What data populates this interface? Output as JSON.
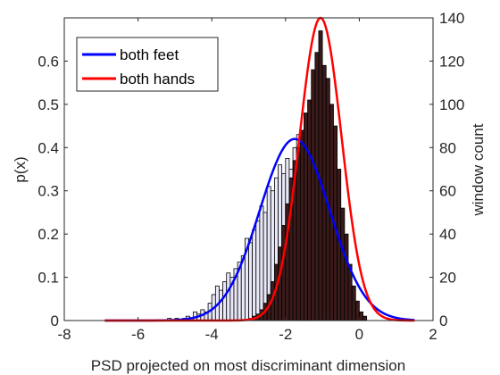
{
  "chart_data": {
    "type": "bar",
    "xlabel": "PSD projected on most discriminant dimension",
    "ylabel": "p(x)",
    "y2label": "window count",
    "xlim": [
      -8,
      2
    ],
    "ylim": [
      0,
      0.7
    ],
    "y2lim": [
      0,
      140
    ],
    "xticks": [
      "-8",
      "-6",
      "-4",
      "-2",
      "0",
      "2"
    ],
    "yticks": [
      "0",
      "0.1",
      "0.2",
      "0.3",
      "0.4",
      "0.5",
      "0.6"
    ],
    "y2ticks": [
      "0",
      "20",
      "40",
      "60",
      "80",
      "100",
      "120",
      "140"
    ],
    "grid": false,
    "legend_position": "top-left",
    "histograms": [
      {
        "group": "both feet",
        "fill": "#e8e8f8",
        "bins": [
          [
            -5.2,
            -5.1,
            1
          ],
          [
            -5.1,
            -5.0,
            0
          ],
          [
            -5.0,
            -4.9,
            1
          ],
          [
            -4.9,
            -4.8,
            0
          ],
          [
            -4.8,
            -4.7,
            1
          ],
          [
            -4.7,
            -4.6,
            2
          ],
          [
            -4.6,
            -4.5,
            1
          ],
          [
            -4.5,
            -4.4,
            4
          ],
          [
            -4.4,
            -4.3,
            3
          ],
          [
            -4.3,
            -4.2,
            5
          ],
          [
            -4.2,
            -4.1,
            4
          ],
          [
            -4.1,
            -4.0,
            8
          ],
          [
            -4.0,
            -3.9,
            12
          ],
          [
            -3.9,
            -3.8,
            16
          ],
          [
            -3.8,
            -3.7,
            14
          ],
          [
            -3.7,
            -3.6,
            18
          ],
          [
            -3.6,
            -3.5,
            22
          ],
          [
            -3.5,
            -3.4,
            20
          ],
          [
            -3.4,
            -3.3,
            24
          ],
          [
            -3.3,
            -3.2,
            27
          ],
          [
            -3.2,
            -3.1,
            30
          ],
          [
            -3.1,
            -3.0,
            38
          ],
          [
            -3.0,
            -2.9,
            36
          ],
          [
            -2.9,
            -2.8,
            42
          ],
          [
            -2.8,
            -2.7,
            46
          ],
          [
            -2.7,
            -2.6,
            53
          ],
          [
            -2.6,
            -2.5,
            50
          ],
          [
            -2.5,
            -2.4,
            62
          ],
          [
            -2.4,
            -2.3,
            60
          ],
          [
            -2.3,
            -2.2,
            66
          ],
          [
            -2.2,
            -2.1,
            72
          ],
          [
            -2.1,
            -2.0,
            68
          ],
          [
            -2.0,
            -1.9,
            75
          ],
          [
            -1.9,
            -1.8,
            70
          ],
          [
            -1.8,
            -1.7,
            80
          ],
          [
            -1.7,
            -1.6,
            86
          ],
          [
            -1.6,
            -1.5,
            82
          ],
          [
            -1.5,
            -1.4,
            78
          ],
          [
            -1.4,
            -1.3,
            84
          ],
          [
            -1.3,
            -1.2,
            70
          ],
          [
            -1.2,
            -1.1,
            74
          ],
          [
            -1.1,
            -1.0,
            58
          ],
          [
            -1.0,
            -0.9,
            62
          ],
          [
            -0.9,
            -0.8,
            44
          ],
          [
            -0.8,
            -0.7,
            48
          ],
          [
            -0.7,
            -0.6,
            30
          ],
          [
            -0.6,
            -0.5,
            24
          ],
          [
            -0.5,
            -0.4,
            14
          ],
          [
            -0.4,
            -0.3,
            10
          ],
          [
            -0.3,
            -0.2,
            6
          ],
          [
            -0.2,
            -0.1,
            4
          ],
          [
            -0.1,
            0.0,
            2
          ]
        ]
      },
      {
        "group": "both hands",
        "fill": "#3a1a1a",
        "bins": [
          [
            -3.0,
            -2.9,
            1
          ],
          [
            -2.9,
            -2.8,
            2
          ],
          [
            -2.8,
            -2.7,
            3
          ],
          [
            -2.7,
            -2.6,
            5
          ],
          [
            -2.6,
            -2.5,
            8
          ],
          [
            -2.5,
            -2.4,
            12
          ],
          [
            -2.4,
            -2.3,
            18
          ],
          [
            -2.3,
            -2.2,
            26
          ],
          [
            -2.2,
            -2.1,
            34
          ],
          [
            -2.1,
            -2.0,
            44
          ],
          [
            -2.0,
            -1.9,
            54
          ],
          [
            -1.9,
            -1.8,
            66
          ],
          [
            -1.8,
            -1.7,
            74
          ],
          [
            -1.7,
            -1.6,
            80
          ],
          [
            -1.6,
            -1.5,
            88
          ],
          [
            -1.5,
            -1.4,
            96
          ],
          [
            -1.4,
            -1.3,
            102
          ],
          [
            -1.3,
            -1.2,
            116
          ],
          [
            -1.2,
            -1.1,
            124
          ],
          [
            -1.1,
            -1.0,
            134
          ],
          [
            -1.0,
            -0.9,
            118
          ],
          [
            -0.9,
            -0.8,
            112
          ],
          [
            -0.8,
            -0.7,
            100
          ],
          [
            -0.7,
            -0.6,
            90
          ],
          [
            -0.6,
            -0.5,
            70
          ],
          [
            -0.5,
            -0.4,
            52
          ],
          [
            -0.4,
            -0.3,
            40
          ],
          [
            -0.3,
            -0.2,
            26
          ],
          [
            -0.2,
            -0.1,
            16
          ],
          [
            -0.1,
            0.0,
            9
          ],
          [
            0.0,
            0.1,
            4
          ],
          [
            0.1,
            0.2,
            2
          ]
        ]
      }
    ],
    "series": [
      {
        "name": "both feet",
        "color": "#0000ff",
        "distribution": "normal",
        "mean": -1.75,
        "std": 0.95,
        "peak": 0.42,
        "range": [
          -6.9,
          1.5
        ]
      },
      {
        "name": "both hands",
        "color": "#ff0000",
        "distribution": "normal",
        "mean": -1.05,
        "std": 0.57,
        "peak": 0.7,
        "range": [
          -6.9,
          1.5
        ]
      }
    ]
  }
}
